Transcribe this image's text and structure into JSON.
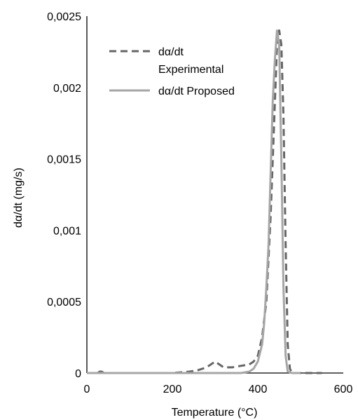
{
  "chart_data": {
    "type": "line",
    "xlabel": "Temperature (°C)",
    "ylabel": "dα/dt (mg/s)",
    "xlim": [
      0,
      600
    ],
    "ylim": [
      0,
      0.0025
    ],
    "x_ticks": [
      "0",
      "200",
      "400",
      "600"
    ],
    "y_ticks": [
      "0",
      "0,0005",
      "0,001",
      "0,0015",
      "0,002",
      "0,0025"
    ],
    "grid": false,
    "legend_position": "top-left",
    "series": [
      {
        "name_lines": [
          "dα/dt",
          "Experimental"
        ],
        "style": "dashed",
        "color": "#666666",
        "x": [
          25,
          30,
          35,
          40,
          60,
          100,
          150,
          200,
          220,
          240,
          260,
          280,
          300,
          310,
          320,
          340,
          360,
          380,
          390,
          400,
          410,
          420,
          430,
          440,
          445,
          450,
          455,
          460,
          465,
          470,
          475,
          480,
          500,
          520,
          550
        ],
        "y": [
          0,
          1e-05,
          1e-05,
          0,
          0,
          0,
          0,
          0,
          5e-06,
          1e-05,
          2e-05,
          4e-05,
          8e-05,
          6e-05,
          4e-05,
          4e-05,
          5e-05,
          6e-05,
          8e-05,
          0.00012,
          0.00025,
          0.0005,
          0.0011,
          0.0019,
          0.0023,
          0.0024,
          0.0023,
          0.0018,
          0.0009,
          0.0002,
          3e-05,
          0,
          0,
          0,
          0
        ]
      },
      {
        "name": "dα/dt Proposed",
        "style": "solid",
        "color": "#a6a6a6",
        "x": [
          0,
          100,
          200,
          300,
          360,
          380,
          390,
          400,
          410,
          415,
          420,
          425,
          430,
          435,
          440,
          445,
          450,
          455,
          460,
          465,
          470,
          480,
          500
        ],
        "y": [
          0,
          0,
          0,
          0,
          0,
          1e-05,
          3e-05,
          8e-05,
          0.0002,
          0.00035,
          0.0006,
          0.0009,
          0.0014,
          0.0019,
          0.0022,
          0.0024,
          0.0023,
          0.0015,
          0.0006,
          0.00012,
          1e-05,
          0,
          0
        ]
      }
    ]
  }
}
